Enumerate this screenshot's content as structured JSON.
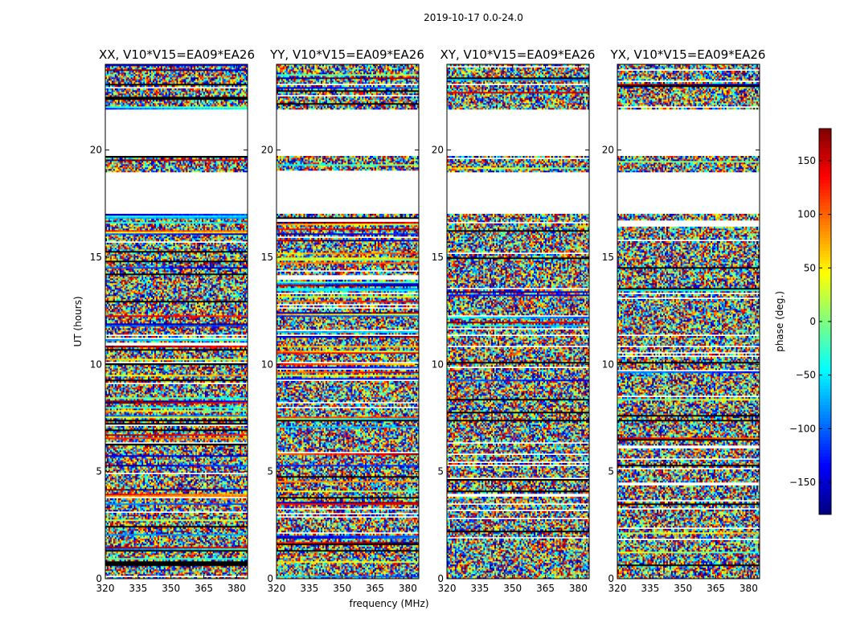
{
  "suptitle": "2019-10-17 0.0-24.0",
  "colors": {
    "blank": "#ffffff",
    "gap": "#000000"
  },
  "chart_data": {
    "type": "heatmap",
    "xlabel": "frequency (MHz)",
    "ylabel": "UT (hours)",
    "xlim": [
      320,
      385
    ],
    "ylim": [
      0,
      24
    ],
    "x_ticks": [
      320,
      335,
      350,
      365,
      380
    ],
    "y_ticks": [
      0,
      5,
      10,
      15,
      20
    ],
    "panels": [
      {
        "title": "XX, V10*V15=EA09*EA26",
        "pol": "XX"
      },
      {
        "title": "YY, V10*V15=EA09*EA26",
        "pol": "YY"
      },
      {
        "title": "XY, V10*V15=EA09*EA26",
        "pol": "XY"
      },
      {
        "title": "YX, V10*V15=EA09*EA26",
        "pol": "YX"
      }
    ],
    "colorbar": {
      "label": "phase (deg.)",
      "range": [
        -180,
        180
      ],
      "ticks": [
        150,
        100,
        50,
        0,
        -50,
        -100,
        -150
      ],
      "tick_labels": [
        "150",
        "100",
        "50",
        "0",
        "−50",
        "−100",
        "−150"
      ],
      "colormap": "jet"
    },
    "no_data_ranges": [
      [
        17.0,
        19.0
      ],
      [
        19.7,
        21.9
      ]
    ]
  }
}
